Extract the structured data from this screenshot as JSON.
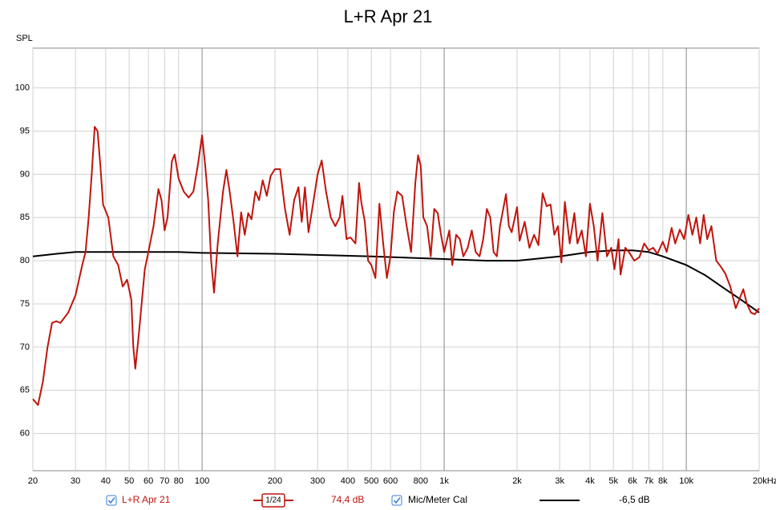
{
  "chart_data": {
    "type": "line",
    "title": "L+R Apr 21",
    "ylabel": "SPL",
    "xscale": "log",
    "grid": true,
    "xlim": [
      20,
      20000
    ],
    "ylim": [
      55.7,
      104.6
    ],
    "xticks": [
      20,
      30,
      40,
      50,
      60,
      70,
      80,
      100,
      200,
      300,
      400,
      500,
      600,
      800,
      {
        "value": 1000,
        "label": "1k"
      },
      {
        "value": 2000,
        "label": "2k"
      },
      {
        "value": 3000,
        "label": "3k"
      },
      {
        "value": 4000,
        "label": "4k"
      },
      {
        "value": 5000,
        "label": "5k"
      },
      {
        "value": 6000,
        "label": "6k"
      },
      {
        "value": 7000,
        "label": "7k"
      },
      {
        "value": 8000,
        "label": "8k"
      },
      {
        "value": 10000,
        "label": "10k"
      },
      {
        "value": 20000,
        "label": "20kHz"
      }
    ],
    "yticks": [
      60,
      65,
      70,
      75,
      80,
      85,
      90,
      95,
      100
    ],
    "smoothing": "1/24",
    "series": [
      {
        "name": "L+R Apr 21",
        "color": "#c0140c",
        "level": "74,4 dB",
        "x": [
          20,
          21,
          22,
          23,
          24,
          25,
          26,
          28,
          30,
          32,
          33,
          34,
          35,
          36,
          37,
          38,
          39,
          41,
          43,
          45,
          47,
          49,
          51,
          52,
          53,
          55,
          58,
          60,
          63,
          66,
          68,
          70,
          72,
          75,
          77,
          80,
          84,
          88,
          92,
          96,
          100,
          103,
          106,
          109,
          112,
          116,
          122,
          126,
          130,
          135,
          140,
          145,
          150,
          155,
          160,
          166,
          172,
          178,
          185,
          192,
          200,
          210,
          220,
          230,
          240,
          250,
          258,
          266,
          275,
          285,
          300,
          312,
          325,
          340,
          355,
          370,
          380,
          395,
          410,
          430,
          445,
          455,
          470,
          485,
          500,
          520,
          540,
          560,
          580,
          600,
          620,
          640,
          670,
          700,
          730,
          760,
          780,
          800,
          820,
          850,
          880,
          910,
          940,
          970,
          1000,
          1050,
          1080,
          1120,
          1160,
          1200,
          1250,
          1300,
          1350,
          1400,
          1450,
          1500,
          1550,
          1600,
          1650,
          1700,
          1800,
          1850,
          1900,
          2000,
          2050,
          2150,
          2250,
          2350,
          2450,
          2550,
          2650,
          2750,
          2850,
          2950,
          3050,
          3150,
          3300,
          3450,
          3550,
          3700,
          3850,
          4000,
          4150,
          4300,
          4500,
          4700,
          4900,
          5050,
          5250,
          5350,
          5600,
          5800,
          6100,
          6400,
          6700,
          7000,
          7300,
          7600,
          8000,
          8300,
          8700,
          9000,
          9400,
          9800,
          10200,
          10600,
          11000,
          11400,
          11800,
          12200,
          12700,
          13300,
          13900,
          14500,
          15200,
          16000,
          16600,
          17200,
          17800,
          18500,
          19200,
          20000
        ],
        "values": [
          64,
          63.3,
          66,
          70,
          72.8,
          73,
          72.8,
          74,
          76,
          79.5,
          81,
          85,
          90,
          95.5,
          95,
          91,
          86.5,
          85,
          80.5,
          79.5,
          77,
          77.8,
          75.5,
          70,
          67.5,
          72,
          79,
          81,
          84,
          88.3,
          87,
          83.5,
          85,
          91.5,
          92.3,
          89.5,
          88,
          87.3,
          88,
          91,
          94.5,
          91,
          87,
          80,
          76.3,
          82,
          88,
          90.5,
          88,
          84.5,
          80.5,
          85.6,
          83,
          85.5,
          84.8,
          88,
          87,
          89.3,
          87.5,
          89.8,
          90.6,
          90.6,
          86,
          83,
          87,
          88.5,
          84.5,
          88.5,
          83.3,
          86,
          90,
          91.6,
          88,
          85,
          84,
          85,
          87.5,
          82.5,
          82.7,
          82,
          89,
          86.7,
          84.5,
          80,
          79.5,
          78,
          86.6,
          82,
          78,
          80.5,
          85.7,
          88,
          87.5,
          84,
          81,
          89,
          92.2,
          91,
          85,
          84,
          80.5,
          86,
          85.5,
          83,
          81,
          83.5,
          79.5,
          83,
          82.5,
          80.5,
          81.5,
          83.5,
          81,
          80.5,
          82.5,
          86,
          85,
          81,
          80.5,
          84,
          87.7,
          84,
          83.3,
          86.2,
          82.3,
          84.5,
          81.5,
          83,
          81.8,
          87.8,
          86.3,
          86.5,
          83,
          84,
          79.8,
          86.8,
          82,
          85.5,
          82,
          83.5,
          80.5,
          86.6,
          84,
          80,
          85.5,
          80.5,
          81.5,
          79,
          82.5,
          78.4,
          81.5,
          81,
          80,
          80.4,
          82,
          81.2,
          81.5,
          80.8,
          82.2,
          81,
          83.8,
          82,
          83.6,
          82.5,
          85.3,
          83,
          85,
          82,
          85.3,
          82.5,
          84,
          80,
          79.3,
          78.5,
          77,
          74.5,
          75.6,
          76.7,
          75,
          74,
          73.8,
          74.5
        ]
      },
      {
        "name": "Mic/Meter Cal",
        "color": "#000000",
        "level": "-6,5 dB",
        "x": [
          20,
          25,
          30,
          40,
          50,
          80,
          100,
          200,
          500,
          1000,
          1500,
          2000,
          3000,
          4000,
          5000,
          6000,
          7000,
          8000,
          10000,
          12000,
          14000,
          17000,
          20000
        ],
        "values": [
          80.5,
          80.8,
          81,
          81,
          81,
          81,
          80.9,
          80.8,
          80.5,
          80.2,
          80,
          80,
          80.5,
          81,
          81.2,
          81.2,
          81,
          80.5,
          79.5,
          78.3,
          77,
          75.4,
          74
        ]
      }
    ]
  }
}
